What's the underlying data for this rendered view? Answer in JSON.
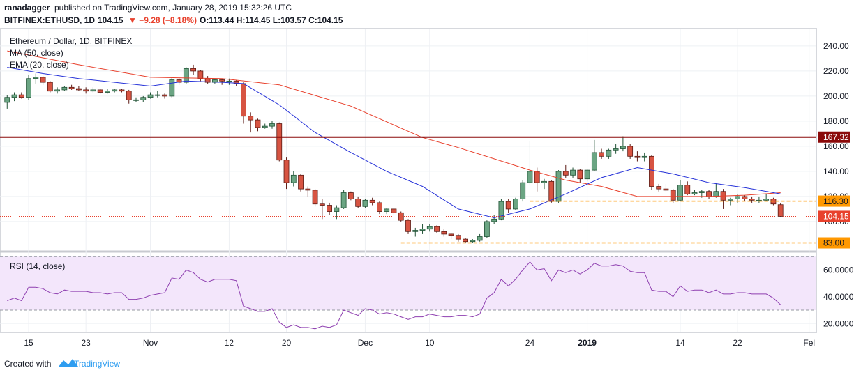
{
  "header": {
    "author": "ranadagger",
    "published": "published on TradingView.com, January 28, 2019 15:32:26 UTC",
    "symbol": "BITFINEX:ETHUSD, 1D",
    "last": "104.15",
    "change": "▼ −9.28 (−8.18%)",
    "ohlc": "O:113.44 H:114.45 L:103.57 C:104.15"
  },
  "footer": {
    "created": "Created with",
    "brand": "TradingView"
  },
  "chart_data": [
    {
      "type": "candlestick",
      "title": "Ethereum / Dollar, 1D, BITFINEX",
      "x": [
        "2018-10-12",
        "2018-10-13",
        "2018-10-14",
        "2018-10-15",
        "2018-10-16",
        "2018-10-17",
        "2018-10-18",
        "2018-10-19",
        "2018-10-20",
        "2018-10-21",
        "2018-10-22",
        "2018-10-23",
        "2018-10-24",
        "2018-10-25",
        "2018-10-26",
        "2018-10-27",
        "2018-10-28",
        "2018-10-29",
        "2018-10-30",
        "2018-10-31",
        "2018-11-01",
        "2018-11-02",
        "2018-11-03",
        "2018-11-04",
        "2018-11-05",
        "2018-11-06",
        "2018-11-07",
        "2018-11-08",
        "2018-11-09",
        "2018-11-10",
        "2018-11-11",
        "2018-11-12",
        "2018-11-13",
        "2018-11-14",
        "2018-11-15",
        "2018-11-16",
        "2018-11-17",
        "2018-11-18",
        "2018-11-19",
        "2018-11-20",
        "2018-11-21",
        "2018-11-22",
        "2018-11-23",
        "2018-11-24",
        "2018-11-25",
        "2018-11-26",
        "2018-11-27",
        "2018-11-28",
        "2018-11-29",
        "2018-11-30",
        "2018-12-01",
        "2018-12-02",
        "2018-12-03",
        "2018-12-04",
        "2018-12-05",
        "2018-12-06",
        "2018-12-07",
        "2018-12-08",
        "2018-12-09",
        "2018-12-10",
        "2018-12-11",
        "2018-12-12",
        "2018-12-13",
        "2018-12-14",
        "2018-12-15",
        "2018-12-16",
        "2018-12-17",
        "2018-12-18",
        "2018-12-19",
        "2018-12-20",
        "2018-12-21",
        "2018-12-22",
        "2018-12-23",
        "2018-12-24",
        "2018-12-25",
        "2018-12-26",
        "2018-12-27",
        "2018-12-28",
        "2018-12-29",
        "2018-12-30",
        "2018-12-31",
        "2019-01-01",
        "2019-01-02",
        "2019-01-03",
        "2019-01-04",
        "2019-01-05",
        "2019-01-06",
        "2019-01-07",
        "2019-01-08",
        "2019-01-09",
        "2019-01-10",
        "2019-01-11",
        "2019-01-12",
        "2019-01-13",
        "2019-01-14",
        "2019-01-15",
        "2019-01-16",
        "2019-01-17",
        "2019-01-18",
        "2019-01-19",
        "2019-01-20",
        "2019-01-21",
        "2019-01-22",
        "2019-01-23",
        "2019-01-24",
        "2019-01-25",
        "2019-01-26",
        "2019-01-27",
        "2019-01-28"
      ],
      "open": [
        195,
        199,
        201,
        199,
        214,
        215,
        211,
        204,
        205,
        207,
        206,
        205,
        204,
        205,
        203,
        204,
        205,
        204,
        197,
        197,
        199,
        201,
        201,
        200,
        213,
        211,
        222,
        220,
        214,
        211,
        213,
        212,
        212,
        210,
        184,
        181,
        175,
        176,
        178,
        149,
        131,
        137,
        126,
        125,
        114,
        113,
        108,
        111,
        123,
        118,
        112,
        117,
        115,
        108,
        110,
        107,
        101,
        92,
        93,
        94,
        96,
        92,
        90,
        89,
        86,
        84,
        85,
        88,
        100,
        102,
        116,
        110,
        118,
        131,
        140,
        131,
        132,
        116,
        140,
        137,
        141,
        134,
        141,
        155,
        152,
        157,
        158,
        160,
        152,
        151,
        152,
        128,
        126,
        125,
        117,
        129,
        122,
        123,
        124,
        120,
        124,
        117,
        118,
        120,
        118,
        117,
        117,
        118,
        113.44
      ],
      "high": [
        201,
        203,
        203,
        217,
        218,
        216,
        212,
        207,
        208,
        209,
        208,
        207,
        207,
        206,
        206,
        206,
        206,
        205,
        199,
        200,
        203,
        204,
        202,
        215,
        215,
        223,
        225,
        221,
        216,
        214,
        214,
        214,
        213,
        211,
        187,
        182,
        178,
        180,
        179,
        151,
        140,
        138,
        128,
        126,
        118,
        115,
        113,
        125,
        124,
        120,
        118,
        119,
        116,
        111,
        111,
        108,
        102,
        95,
        98,
        98,
        97,
        94,
        91,
        90,
        87,
        86,
        90,
        101,
        105,
        118,
        118,
        119,
        133,
        164,
        143,
        134,
        133,
        141,
        145,
        143,
        142,
        142,
        165,
        158,
        158,
        162,
        168,
        162,
        156,
        155,
        153,
        130,
        130,
        126,
        133,
        132,
        125,
        125,
        125,
        131,
        126,
        119,
        122,
        121,
        120,
        120,
        122,
        119,
        114.45
      ],
      "low": [
        190,
        196,
        198,
        197,
        210,
        209,
        203,
        202,
        204,
        205,
        204,
        202,
        203,
        202,
        202,
        203,
        203,
        194,
        195,
        195,
        198,
        199,
        198,
        199,
        209,
        210,
        217,
        212,
        210,
        210,
        209,
        209,
        208,
        178,
        171,
        172,
        174,
        174,
        148,
        126,
        128,
        124,
        120,
        112,
        102,
        105,
        102,
        110,
        117,
        111,
        111,
        113,
        106,
        106,
        105,
        100,
        90,
        88,
        90,
        92,
        91,
        88,
        86,
        84,
        83,
        83,
        84,
        87,
        98,
        101,
        107,
        109,
        116,
        129,
        124,
        126,
        115,
        115,
        135,
        135,
        131,
        132,
        140,
        150,
        150,
        154,
        156,
        150,
        148,
        148,
        125,
        124,
        124,
        115,
        116,
        121,
        121,
        119,
        118,
        119,
        110,
        113,
        115,
        116,
        115,
        115,
        116,
        113,
        103.57
      ],
      "close": [
        199,
        201,
        199,
        214,
        215,
        211,
        204,
        205,
        207,
        206,
        205,
        204,
        205,
        203,
        204,
        205,
        204,
        197,
        197,
        199,
        201,
        201,
        200,
        213,
        211,
        222,
        220,
        214,
        211,
        213,
        212,
        212,
        210,
        184,
        181,
        175,
        176,
        178,
        149,
        131,
        137,
        126,
        125,
        114,
        113,
        108,
        111,
        123,
        118,
        112,
        117,
        115,
        108,
        110,
        107,
        101,
        92,
        93,
        94,
        96,
        92,
        90,
        89,
        86,
        84,
        85,
        88,
        100,
        102,
        116,
        110,
        118,
        131,
        140,
        131,
        132,
        116,
        140,
        137,
        141,
        134,
        141,
        155,
        152,
        157,
        158,
        160,
        152,
        151,
        152,
        128,
        126,
        125,
        117,
        129,
        122,
        123,
        124,
        120,
        124,
        117,
        118,
        120,
        118,
        117,
        117,
        118,
        114,
        104.15
      ],
      "up_color": "#6ba583",
      "down_color": "#d75442",
      "series": [
        {
          "name": "MA (50, close)",
          "color": "#e8412d",
          "x": [
            "2018-10-12",
            "2018-10-22",
            "2018-11-01",
            "2018-11-11",
            "2018-11-19",
            "2018-11-29",
            "2018-12-09",
            "2018-12-14",
            "2018-12-19",
            "2018-12-24",
            "2018-12-29",
            "2019-01-03",
            "2019-01-08",
            "2019-01-13",
            "2019-01-18",
            "2019-01-23",
            "2019-01-28"
          ],
          "values": [
            236,
            225,
            215,
            214,
            209,
            192,
            167,
            159,
            150,
            141,
            133,
            128,
            120,
            120,
            120,
            121,
            123
          ]
        },
        {
          "name": "EMA (20, close)",
          "color": "#2632d8",
          "x": [
            "2018-10-12",
            "2018-10-17",
            "2018-10-22",
            "2018-10-27",
            "2018-11-01",
            "2018-11-06",
            "2018-11-11",
            "2018-11-14",
            "2018-11-19",
            "2018-11-24",
            "2018-11-29",
            "2018-12-04",
            "2018-12-09",
            "2018-12-14",
            "2018-12-19",
            "2018-12-24",
            "2018-12-29",
            "2019-01-03",
            "2019-01-08",
            "2019-01-13",
            "2019-01-18",
            "2019-01-23",
            "2019-01-28"
          ],
          "values": [
            223,
            218,
            214,
            211,
            208,
            212,
            211,
            210,
            193,
            171,
            155,
            140,
            128,
            110,
            103,
            110,
            122,
            135,
            143,
            138,
            131,
            127,
            122
          ]
        }
      ],
      "hlines": [
        {
          "value": 167.32,
          "label": "167.32",
          "color": "#8b0a0a",
          "text_color": "#ffffff",
          "style": "solid"
        },
        {
          "value": 116.3,
          "label": "116.30",
          "color": "#ff9800",
          "text_color": "#131722",
          "style": "dashed",
          "from": "2018-12-24"
        },
        {
          "value": 83,
          "label": "83.00",
          "color": "#ff9800",
          "text_color": "#131722",
          "style": "dashed",
          "from": "2018-12-06"
        }
      ],
      "last_price": {
        "value": 104.15,
        "label": "104.15",
        "color": "#e8412d",
        "text_color": "#ffffff"
      },
      "xlim": [
        "2018-10-11",
        "2019-02-02"
      ],
      "xticks": [
        {
          "value": "2018-10-15",
          "label": "15"
        },
        {
          "value": "2018-10-23",
          "label": "23"
        },
        {
          "value": "2018-11-01",
          "label": "Nov"
        },
        {
          "value": "2018-11-12",
          "label": "12"
        },
        {
          "value": "2018-11-20",
          "label": "20"
        },
        {
          "value": "2018-12-01",
          "label": "Dec"
        },
        {
          "value": "2018-12-10",
          "label": "10"
        },
        {
          "value": "2018-12-24",
          "label": "24"
        },
        {
          "value": "2019-01-01",
          "label": "2019"
        },
        {
          "value": "2019-01-14",
          "label": "14"
        },
        {
          "value": "2019-01-22",
          "label": "22"
        },
        {
          "value": "2019-02-01",
          "label": "Fel"
        }
      ],
      "ylim": [
        79.4,
        254.4
      ],
      "yticks": [
        {
          "value": 100,
          "label": "100.00"
        },
        {
          "value": 120,
          "label": "120.00"
        },
        {
          "value": 140,
          "label": "140.00"
        },
        {
          "value": 160,
          "label": "160.00"
        },
        {
          "value": 180,
          "label": "180.00"
        },
        {
          "value": 200,
          "label": "200.00"
        },
        {
          "value": 220,
          "label": "220.00"
        },
        {
          "value": 240,
          "label": "240.00"
        }
      ],
      "grid": true
    },
    {
      "type": "line",
      "x": [
        "2018-10-12",
        "2018-10-13",
        "2018-10-14",
        "2018-10-15",
        "2018-10-16",
        "2018-10-17",
        "2018-10-18",
        "2018-10-19",
        "2018-10-20",
        "2018-10-21",
        "2018-10-22",
        "2018-10-23",
        "2018-10-24",
        "2018-10-25",
        "2018-10-26",
        "2018-10-27",
        "2018-10-28",
        "2018-10-29",
        "2018-10-30",
        "2018-10-31",
        "2018-11-01",
        "2018-11-02",
        "2018-11-03",
        "2018-11-04",
        "2018-11-05",
        "2018-11-06",
        "2018-11-07",
        "2018-11-08",
        "2018-11-09",
        "2018-11-10",
        "2018-11-11",
        "2018-11-12",
        "2018-11-13",
        "2018-11-14",
        "2018-11-15",
        "2018-11-16",
        "2018-11-17",
        "2018-11-18",
        "2018-11-19",
        "2018-11-20",
        "2018-11-21",
        "2018-11-22",
        "2018-11-23",
        "2018-11-24",
        "2018-11-25",
        "2018-11-26",
        "2018-11-27",
        "2018-11-28",
        "2018-11-29",
        "2018-11-30",
        "2018-12-01",
        "2018-12-02",
        "2018-12-03",
        "2018-12-04",
        "2018-12-05",
        "2018-12-06",
        "2018-12-07",
        "2018-12-08",
        "2018-12-09",
        "2018-12-10",
        "2018-12-11",
        "2018-12-12",
        "2018-12-13",
        "2018-12-14",
        "2018-12-15",
        "2018-12-16",
        "2018-12-17",
        "2018-12-18",
        "2018-12-19",
        "2018-12-20",
        "2018-12-21",
        "2018-12-22",
        "2018-12-23",
        "2018-12-24",
        "2018-12-25",
        "2018-12-26",
        "2018-12-27",
        "2018-12-28",
        "2018-12-29",
        "2018-12-30",
        "2018-12-31",
        "2019-01-01",
        "2019-01-02",
        "2019-01-03",
        "2019-01-04",
        "2019-01-05",
        "2019-01-06",
        "2019-01-07",
        "2019-01-08",
        "2019-01-09",
        "2019-01-10",
        "2019-01-11",
        "2019-01-12",
        "2019-01-13",
        "2019-01-14",
        "2019-01-15",
        "2019-01-16",
        "2019-01-17",
        "2019-01-18",
        "2019-01-19",
        "2019-01-20",
        "2019-01-21",
        "2019-01-22",
        "2019-01-23",
        "2019-01-24",
        "2019-01-25",
        "2019-01-26",
        "2019-01-27",
        "2019-01-28"
      ],
      "series": [
        {
          "name": "RSI (14, close)",
          "color": "#8e3fb0",
          "values": [
            37,
            39,
            37,
            47,
            47,
            46,
            43,
            42,
            45,
            44,
            44,
            44,
            43,
            43,
            42,
            43,
            43,
            38,
            38,
            39,
            41,
            42,
            43,
            54,
            53,
            60,
            58,
            53,
            51,
            53,
            53,
            53,
            52,
            33,
            31,
            29,
            29,
            31,
            21,
            17,
            19,
            17,
            17,
            16,
            18,
            17,
            19,
            30,
            28,
            26,
            31,
            30,
            27,
            28,
            27,
            25,
            23,
            25,
            25,
            27,
            26,
            25,
            25,
            26,
            26,
            25,
            27,
            39,
            43,
            53,
            48,
            53,
            60,
            66,
            60,
            61,
            52,
            60,
            58,
            60,
            57,
            60,
            65,
            63,
            63,
            64,
            63,
            59,
            58,
            58,
            45,
            44,
            44,
            40,
            48,
            44,
            45,
            45,
            43,
            45,
            42,
            42,
            43,
            43,
            42,
            42,
            42,
            39,
            34
          ]
        }
      ],
      "bands": [
        30,
        70
      ],
      "band_color": "#f3e6fb",
      "xlim": [
        "2018-10-11",
        "2019-02-02"
      ],
      "ylim": [
        13.3,
        72.2
      ],
      "yticks": [
        {
          "value": 20,
          "label": "20.0000"
        },
        {
          "value": 40,
          "label": "40.0000"
        },
        {
          "value": 60,
          "label": "60.0000"
        }
      ],
      "grid": true
    }
  ]
}
